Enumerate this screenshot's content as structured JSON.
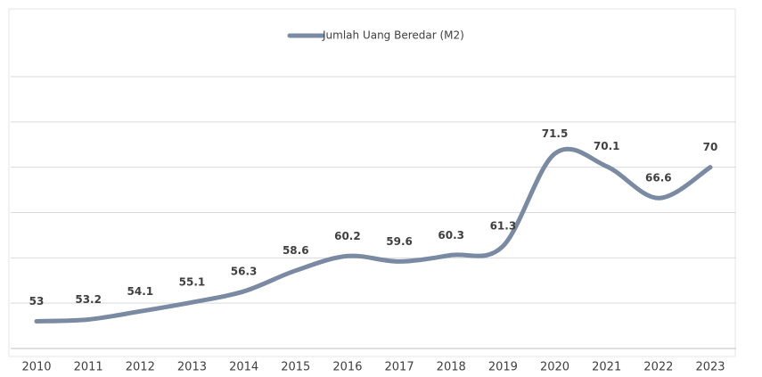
{
  "chart_data": {
    "type": "line",
    "categories": [
      "2010",
      "2011",
      "2012",
      "2013",
      "2014",
      "2015",
      "2016",
      "2017",
      "2018",
      "2019",
      "2020",
      "2021",
      "2022",
      "2023"
    ],
    "series": [
      {
        "name": "Jumlah Uang Beredar (M2)",
        "color": "#7a8aa3",
        "values": [
          53,
          53.2,
          54.1,
          55.1,
          56.3,
          58.6,
          60.2,
          59.6,
          60.3,
          61.3,
          71.5,
          70.1,
          66.6,
          70
        ]
      }
    ],
    "ylim": [
      50,
      80
    ],
    "yticks": [
      50,
      55,
      60,
      65,
      70,
      75,
      80
    ],
    "grid": true,
    "legend": "top",
    "smooth": true
  }
}
